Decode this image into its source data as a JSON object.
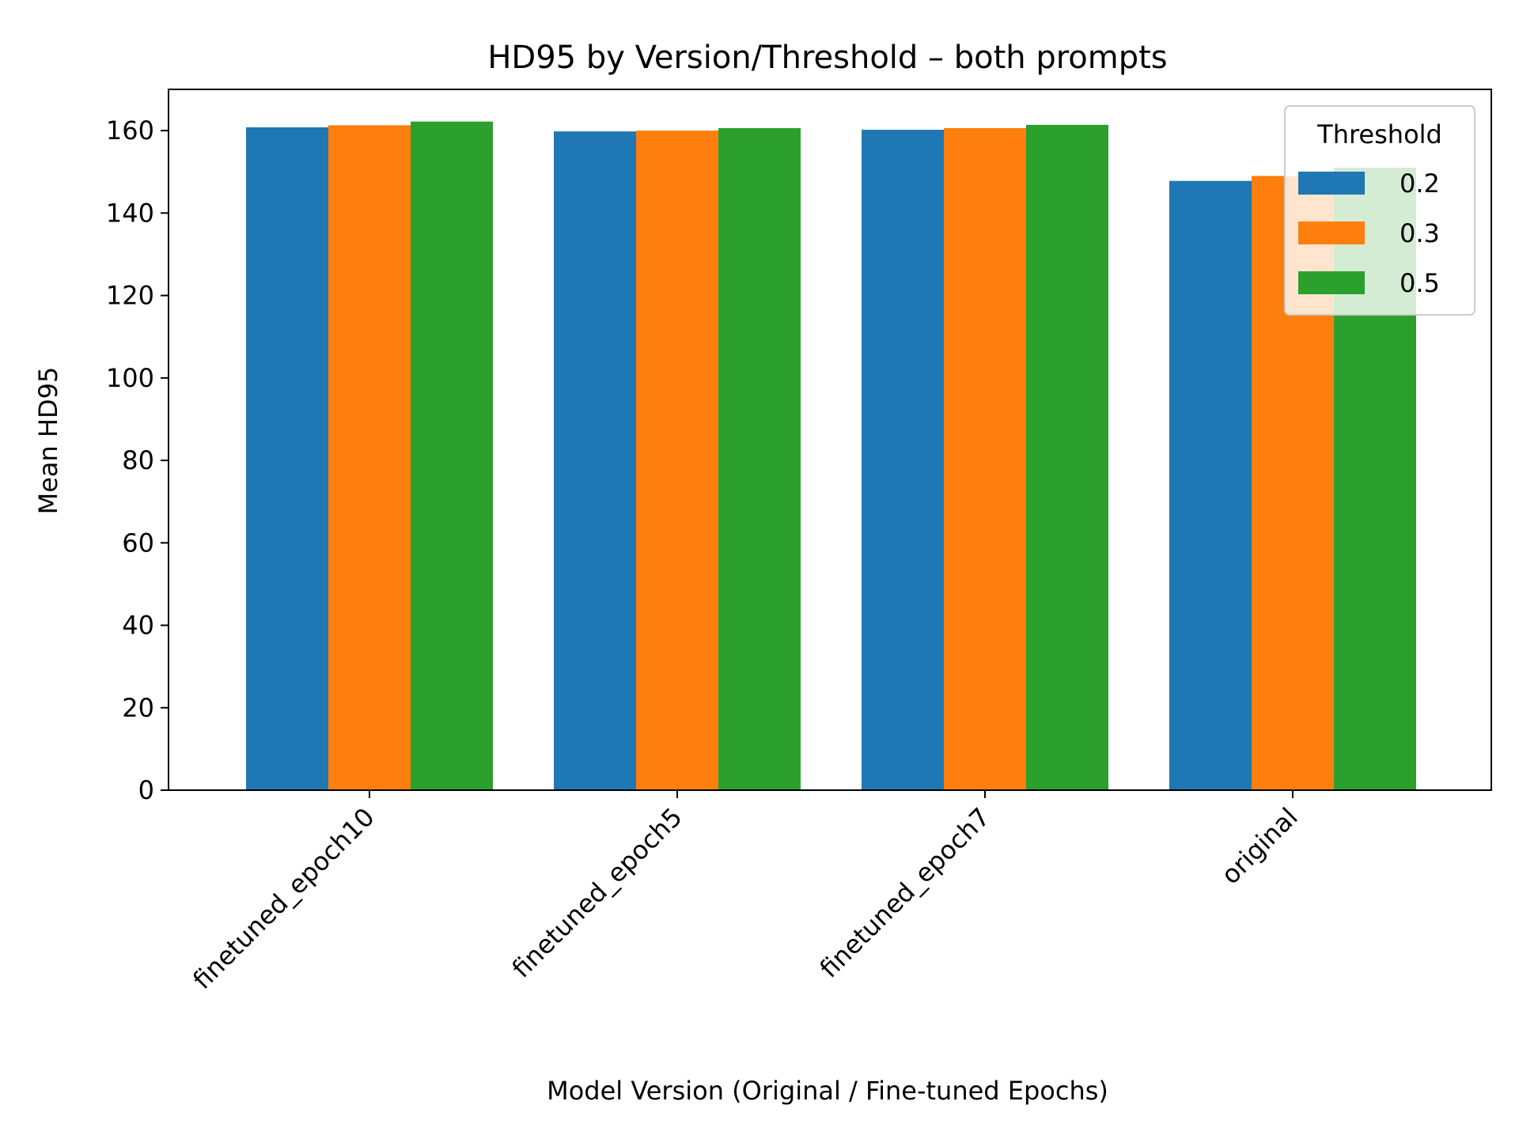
{
  "chart_data": {
    "type": "bar",
    "title": "HD95 by Version/Threshold – both prompts",
    "xlabel": "Model Version (Original / Fine-tuned Epochs)",
    "ylabel": "Mean HD95",
    "categories": [
      "finetuned_epoch10",
      "finetuned_epoch5",
      "finetuned_epoch7",
      "original"
    ],
    "series": [
      {
        "name": "0.2",
        "color": "#1f77b4",
        "values": [
          160.8,
          159.8,
          160.2,
          147.8
        ]
      },
      {
        "name": "0.3",
        "color": "#ff7f0e",
        "values": [
          161.3,
          160.0,
          160.6,
          149.0
        ]
      },
      {
        "name": "0.5",
        "color": "#2ca02c",
        "values": [
          162.2,
          160.6,
          161.4,
          151.0
        ]
      }
    ],
    "ylim": [
      0,
      170
    ],
    "yticks": [
      0,
      20,
      40,
      60,
      80,
      100,
      120,
      140,
      160
    ],
    "grid": false,
    "legend": {
      "title": "Threshold",
      "placement": "top-right"
    }
  }
}
